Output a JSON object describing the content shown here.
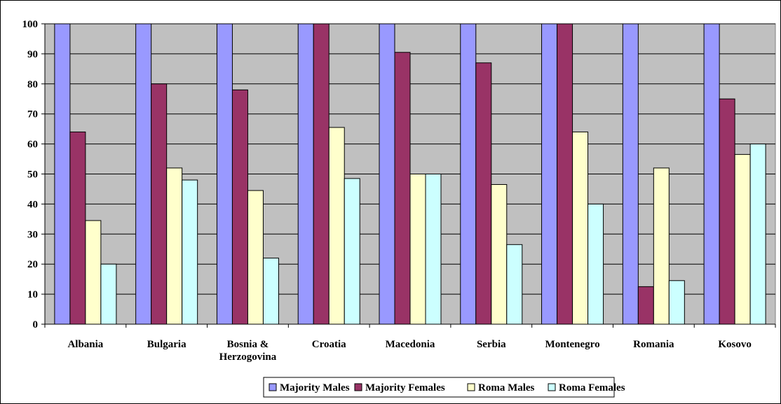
{
  "chart_data": {
    "type": "bar",
    "title": "",
    "xlabel": "",
    "ylabel": "",
    "ylim": [
      0,
      100
    ],
    "yticks": [
      0,
      10,
      20,
      30,
      40,
      50,
      60,
      70,
      80,
      90,
      100
    ],
    "grid": true,
    "legend_position": "bottom",
    "categories": [
      [
        "Albania"
      ],
      [
        "Bulgaria"
      ],
      [
        "Bosnia &",
        "Herzogovina"
      ],
      [
        "Croatia"
      ],
      [
        "Macedonia"
      ],
      [
        "Serbia"
      ],
      [
        "Montenegro"
      ],
      [
        "Romania"
      ],
      [
        "Kosovo"
      ]
    ],
    "series": [
      {
        "name": "Majority Males",
        "color": "#9999ff",
        "values": [
          100,
          100,
          100,
          100,
          100,
          100,
          100,
          100,
          100
        ]
      },
      {
        "name": "Majority Females",
        "color": "#993366",
        "values": [
          64,
          80,
          78,
          100,
          90.5,
          87,
          100,
          12.5,
          75
        ]
      },
      {
        "name": "Roma Males",
        "color": "#ffffcc",
        "values": [
          34.5,
          52,
          44.5,
          65.5,
          50,
          46.5,
          64,
          52,
          56.5
        ]
      },
      {
        "name": "Roma Females",
        "color": "#ccffff",
        "values": [
          20,
          48,
          22,
          48.5,
          50,
          26.5,
          40,
          14.5,
          60
        ]
      }
    ],
    "colors": {
      "plot_background": "#c0c0c0",
      "gridline": "#000000",
      "bar_outline": "#000000"
    }
  }
}
